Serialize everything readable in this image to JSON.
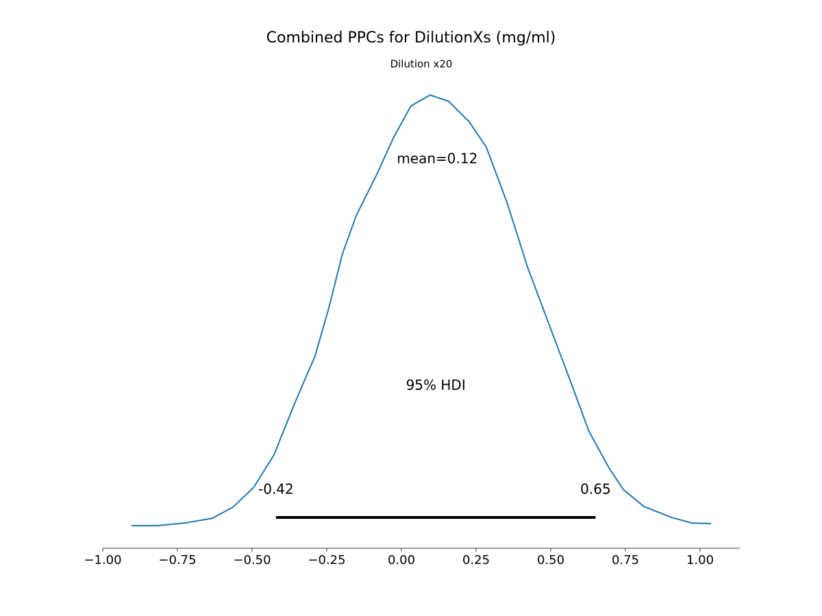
{
  "chart_data": {
    "type": "density",
    "title": "Combined PPCs for DilutionXs (mg/ml)",
    "subtitle": "Dilution x20",
    "color": "#1f77b4",
    "x": [
      -0.904,
      -0.817,
      -0.725,
      -0.633,
      -0.564,
      -0.495,
      -0.427,
      -0.358,
      -0.289,
      -0.243,
      -0.197,
      -0.151,
      -0.083,
      -0.025,
      0.032,
      0.096,
      0.158,
      0.227,
      0.284,
      0.353,
      0.422,
      0.491,
      0.56,
      0.628,
      0.697,
      0.743,
      0.812,
      0.904,
      0.972,
      1.037
    ],
    "values": [
      0.005,
      0.005,
      0.014,
      0.03,
      0.068,
      0.135,
      0.245,
      0.42,
      0.583,
      0.746,
      0.932,
      1.061,
      1.2,
      1.329,
      1.434,
      1.471,
      1.45,
      1.38,
      1.294,
      1.107,
      0.886,
      0.699,
      0.513,
      0.326,
      0.198,
      0.128,
      0.07,
      0.033,
      0.014,
      0.012
    ],
    "mean_label": "mean=0.12",
    "mean": 0.12,
    "hdi": {
      "low": -0.42,
      "high": 0.65,
      "label": "95% HDI"
    },
    "xlim": [
      -1.0,
      1.133
    ],
    "ylim": [
      -0.072,
      1.543
    ],
    "xticks": [
      {
        "value": -1.0,
        "label": "−1.00"
      },
      {
        "value": -0.75,
        "label": "−0.75"
      },
      {
        "value": -0.5,
        "label": "−0.50"
      },
      {
        "value": -0.25,
        "label": "−0.25"
      },
      {
        "value": 0,
        "label": "0.00"
      },
      {
        "value": 0.25,
        "label": "0.25"
      },
      {
        "value": 0.5,
        "label": "0.50"
      },
      {
        "value": 0.75,
        "label": "0.75"
      },
      {
        "value": 1.0,
        "label": "1.00"
      }
    ]
  }
}
